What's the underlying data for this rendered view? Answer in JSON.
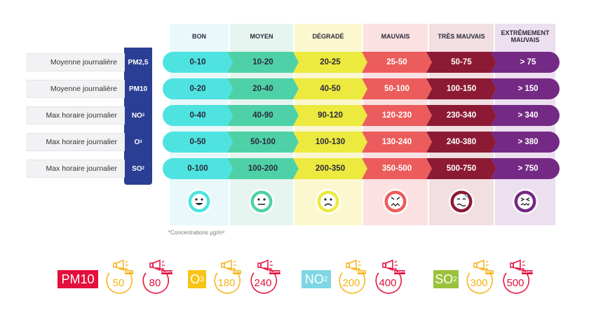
{
  "columns": [
    {
      "label": "BON",
      "bg": "#e8f8fb",
      "color": "#4ee3e0"
    },
    {
      "label": "MOYEN",
      "bg": "#e6f5ef",
      "color": "#4fd1a8"
    },
    {
      "label": "DÉGRADÉ",
      "bg": "#fbf7cf",
      "color": "#ece93f"
    },
    {
      "label": "MAUVAIS",
      "bg": "#fbe1e1",
      "color": "#ec5c5c"
    },
    {
      "label": "TRÈS MAUVAIS",
      "bg": "#f2dfe2",
      "color": "#8c1a34"
    },
    {
      "label": "EXTRÊMEMENT MAUVAIS",
      "bg": "#ecdff0",
      "color": "#742a84"
    }
  ],
  "rows": [
    {
      "label": "Moyenne journalière",
      "pollutant": "PM2,5",
      "sub": "",
      "values": [
        "0-10",
        "10-20",
        "20-25",
        "25-50",
        "50-75",
        "> 75"
      ]
    },
    {
      "label": "Moyenne journalière",
      "pollutant": "PM10",
      "sub": "",
      "values": [
        "0-20",
        "20-40",
        "40-50",
        "50-100",
        "100-150",
        "> 150"
      ]
    },
    {
      "label": "Max horaire journalier",
      "pollutant": "NO",
      "sub": "2",
      "values": [
        "0-40",
        "40-90",
        "90-120",
        "120-230",
        "230-340",
        "> 340"
      ]
    },
    {
      "label": "Max horaire journalier",
      "pollutant": "O",
      "sub": "3",
      "values": [
        "0-50",
        "50-100",
        "100-130",
        "130-240",
        "240-380",
        "> 380"
      ]
    },
    {
      "label": "Max horaire journalier",
      "pollutant": "SO",
      "sub": "2",
      "values": [
        "0-100",
        "100-200",
        "200-350",
        "350-500",
        "500-750",
        "> 750"
      ]
    }
  ],
  "faces": [
    "happy-face-icon",
    "neutral-face-icon",
    "sad-face-icon",
    "angry-face-icon",
    "sick-face-icon",
    "nauseous-face-icon"
  ],
  "footnote": "*Concentrations µg/m³",
  "legend": [
    {
      "code": "PM10",
      "sub": "",
      "box_bg": "#e30f3c",
      "box_fg": "#ffffff",
      "info": "50",
      "alert": "80"
    },
    {
      "code": "O",
      "sub": "3",
      "box_bg": "#f7c517",
      "box_fg": "#ffffff",
      "info": "180",
      "alert": "240"
    },
    {
      "code": "NO",
      "sub": "2",
      "box_bg": "#7fd6e3",
      "box_fg": "#ffffff",
      "info": "200",
      "alert": "400"
    },
    {
      "code": "SO",
      "sub": "2",
      "box_bg": "#9bc23c",
      "box_fg": "#ffffff",
      "info": "300",
      "alert": "500"
    }
  ],
  "badge_labels": {
    "info": "INFO",
    "alert": "ALERTE"
  },
  "badge_colors": {
    "info": "#f5b416",
    "alert": "#e30f3c"
  }
}
